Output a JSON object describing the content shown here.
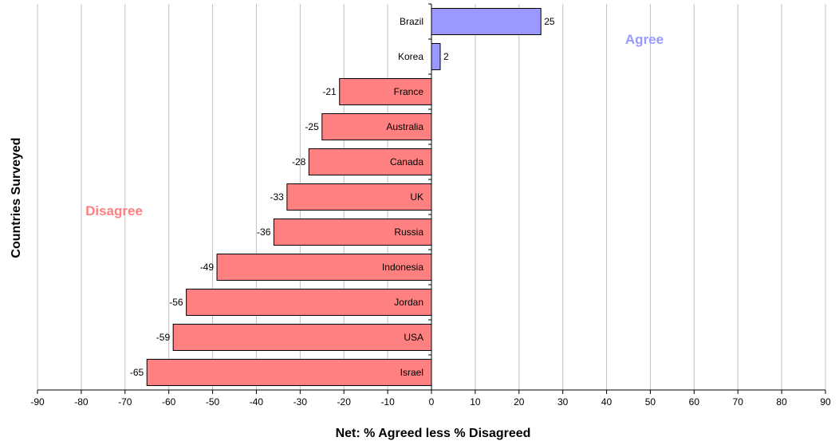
{
  "chart_data": {
    "type": "bar",
    "orientation": "horizontal",
    "categories": [
      "Brazil",
      "Korea",
      "France",
      "Australia",
      "Canada",
      "UK",
      "Russia",
      "Indonesia",
      "Jordan",
      "USA",
      "Israel"
    ],
    "values": [
      25,
      2,
      -21,
      -25,
      -28,
      -33,
      -36,
      -49,
      -56,
      -59,
      -65
    ],
    "xlabel": "Net: % Agreed less % Disagreed",
    "ylabel": "Countries Surveyed",
    "xlim": [
      -90,
      90
    ],
    "xticks": [
      -90,
      -80,
      -70,
      -60,
      -50,
      -40,
      -30,
      -20,
      -10,
      0,
      10,
      20,
      30,
      40,
      50,
      60,
      70,
      80,
      90
    ],
    "grid": "vertical",
    "legend": "none",
    "annotations": [
      {
        "text": "Agree",
        "color": "#9999ff"
      },
      {
        "text": "Disagree",
        "color": "#ff8080"
      }
    ],
    "colors": {
      "positive": "#9999ff",
      "negative": "#ff8080",
      "grid": "#c0c0c0"
    }
  }
}
